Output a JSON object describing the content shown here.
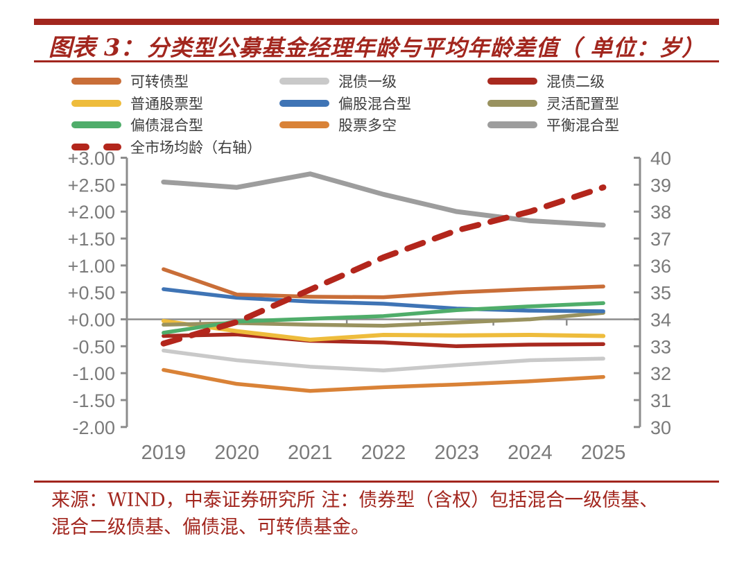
{
  "header": {
    "title_prefix": "图表 3：",
    "title_main": "分类型公募基金经理年龄与平均年龄差值（ 单位：岁）"
  },
  "colors": {
    "accent_red": "#A2261E",
    "footer_red": "#A2261E",
    "axis_gray": "#8c8c8c",
    "label_gray": "#7a7a7a",
    "legend_text": "#3d3d3d"
  },
  "legend": [
    {
      "label": "可转债型",
      "color": "#C96E38",
      "dashed": false,
      "row": 0,
      "col": 0
    },
    {
      "label": "混债一级",
      "color": "#C9C9C9",
      "dashed": false,
      "row": 0,
      "col": 1
    },
    {
      "label": "混债二级",
      "color": "#A8291F",
      "dashed": false,
      "row": 0,
      "col": 2
    },
    {
      "label": "普通股票型",
      "color": "#EEBC3C",
      "dashed": false,
      "row": 1,
      "col": 0
    },
    {
      "label": "偏股混合型",
      "color": "#3F74B5",
      "dashed": false,
      "row": 1,
      "col": 1
    },
    {
      "label": "灵活配置型",
      "color": "#99925F",
      "dashed": false,
      "row": 1,
      "col": 2
    },
    {
      "label": "偏债混合型",
      "color": "#4FAD6A",
      "dashed": false,
      "row": 2,
      "col": 0
    },
    {
      "label": "股票多空",
      "color": "#D98237",
      "dashed": false,
      "row": 2,
      "col": 1
    },
    {
      "label": "平衡混合型",
      "color": "#9D9D9D",
      "dashed": false,
      "row": 2,
      "col": 2
    },
    {
      "label": "全市场均龄（右轴）",
      "color": "#B3261C",
      "dashed": true,
      "row": 3,
      "col": 0
    }
  ],
  "chart_data": {
    "type": "line",
    "categories": [
      "2019",
      "2020",
      "2021",
      "2022",
      "2023",
      "2024",
      "2025"
    ],
    "left_axis": {
      "min": -2,
      "max": 3,
      "step": 0.5,
      "tick_labels": [
        "+3.00",
        "+2.50",
        "+2.00",
        "+1.50",
        "+1.00",
        "+0.50",
        "+0.00",
        "-0.50",
        "-1.00",
        "-1.50",
        "-2.00"
      ]
    },
    "right_axis": {
      "min": 30,
      "max": 40,
      "step": 1,
      "tick_labels": [
        "40",
        "39",
        "38",
        "37",
        "36",
        "35",
        "34",
        "33",
        "32",
        "31",
        "30"
      ]
    },
    "grid": false,
    "legend_position": "top",
    "series": [
      {
        "name": "平衡混合型",
        "color": "#9D9D9D",
        "axis": "left",
        "width": 7,
        "dashed": false,
        "values": [
          2.55,
          2.45,
          2.7,
          2.32,
          2.0,
          1.83,
          1.75
        ]
      },
      {
        "name": "混债一级",
        "color": "#C9C9C9",
        "axis": "left",
        "width": 5.5,
        "dashed": false,
        "values": [
          -0.58,
          -0.76,
          -0.88,
          -0.95,
          -0.85,
          -0.76,
          -0.73
        ]
      },
      {
        "name": "股票多空",
        "color": "#D98237",
        "axis": "left",
        "width": 5.5,
        "dashed": false,
        "values": [
          -0.94,
          -1.2,
          -1.33,
          -1.26,
          -1.21,
          -1.15,
          -1.07
        ]
      },
      {
        "name": "混债二级",
        "color": "#A8291F",
        "axis": "left",
        "width": 5.5,
        "dashed": false,
        "values": [
          -0.31,
          -0.28,
          -0.4,
          -0.43,
          -0.5,
          -0.47,
          -0.46
        ]
      },
      {
        "name": "普通股票型",
        "color": "#EEBC3C",
        "axis": "left",
        "width": 6,
        "dashed": false,
        "values": [
          -0.03,
          -0.22,
          -0.38,
          -0.29,
          -0.3,
          -0.29,
          -0.31
        ]
      },
      {
        "name": "灵活配置型",
        "color": "#99925F",
        "axis": "left",
        "width": 5.5,
        "dashed": false,
        "values": [
          -0.1,
          -0.07,
          -0.1,
          -0.12,
          -0.06,
          0.0,
          0.12
        ]
      },
      {
        "name": "偏股混合型",
        "color": "#3F74B5",
        "axis": "left",
        "width": 5.5,
        "dashed": false,
        "values": [
          0.56,
          0.4,
          0.33,
          0.29,
          0.2,
          0.16,
          0.15
        ]
      },
      {
        "name": "偏债混合型",
        "color": "#4FAD6A",
        "axis": "left",
        "width": 5.5,
        "dashed": false,
        "values": [
          -0.25,
          -0.04,
          0.01,
          0.06,
          0.17,
          0.24,
          0.3
        ]
      },
      {
        "name": "可转债型",
        "color": "#C96E38",
        "axis": "left",
        "width": 5.5,
        "dashed": false,
        "values": [
          0.93,
          0.46,
          0.42,
          0.41,
          0.5,
          0.56,
          0.61
        ]
      },
      {
        "name": "全市场均龄（右轴）",
        "color": "#B3261C",
        "axis": "right",
        "width": 8.5,
        "dashed": true,
        "values": [
          33.1,
          33.9,
          35.1,
          36.3,
          37.3,
          38.0,
          38.9
        ]
      }
    ]
  },
  "footer": {
    "line1": "来源：WIND，中泰证券研究所  注：债券型（含权）包括混合一级债基、",
    "line2": "混合二级债基、偏债混、可转债基金。"
  }
}
